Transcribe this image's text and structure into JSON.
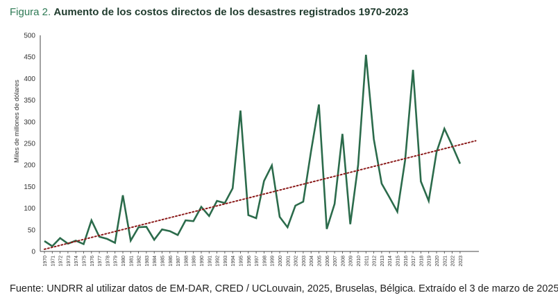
{
  "figure": {
    "label": "Figura 2.",
    "title": "Aumento de los costos directos de los desastres registrados 1970-2023",
    "source": "Fuente: UNDRR al utilizar datos de EM-DAR, CRED / UCLouvain, 2025, Bruselas, Bélgica. Extraído el 3 de marzo de 2025."
  },
  "colors": {
    "line": "#2b6b4b",
    "trend": "#8b1a1a",
    "label": "#2e7a55",
    "title": "#1f3b2d"
  },
  "chart_data": {
    "type": "line",
    "ylabel": "Miles de millones de dólares",
    "xlabel": "",
    "ylim": [
      0,
      500
    ],
    "yticks": [
      0,
      50,
      100,
      150,
      200,
      250,
      300,
      350,
      400,
      450,
      500
    ],
    "grid": false,
    "legend": "none",
    "x": [
      "1970",
      "1971",
      "1972",
      "1973",
      "1974",
      "1975",
      "1976",
      "1977",
      "1978",
      "1979",
      "1980",
      "1981",
      "1982",
      "1983",
      "1984",
      "1985",
      "1986",
      "1987",
      "1988",
      "1989",
      "1990",
      "1991",
      "1992",
      "1993",
      "1994",
      "1995",
      "1996",
      "1997",
      "1998",
      "1999",
      "2000",
      "2001",
      "2002",
      "2003",
      "2004",
      "2005",
      "2006",
      "2007",
      "2008",
      "2009",
      "2010",
      "2011",
      "2012",
      "2013",
      "2014",
      "2015",
      "2016",
      "2017",
      "2018",
      "2019",
      "2020",
      "2021",
      "2022",
      "2023"
    ],
    "x_tick_labels": [
      "1970",
      "1971",
      "1972",
      "1973",
      "1974",
      "1975",
      "1976",
      "1977",
      "1978",
      "1979",
      "1980",
      "1981",
      "1982",
      "1983",
      "1984",
      "1985",
      "1986",
      "1987",
      "1988",
      "1989",
      "1990",
      "1991",
      "1992",
      "1993",
      "1994",
      "1995",
      "1996",
      "1997",
      "1998",
      "1999",
      "2000",
      "2001",
      "2002",
      "2003",
      "2004",
      "2005",
      "2006",
      "2007",
      "2008",
      "2009",
      "2010",
      "2011",
      "2012",
      "2013",
      "2014",
      "2015",
      "2016",
      "2017",
      "2018",
      "2019",
      "2020",
      "2021",
      "2022",
      "2023"
    ],
    "series": [
      {
        "style": "solid",
        "values": [
          24,
          12,
          31,
          18,
          25,
          17,
          72,
          34,
          29,
          20,
          130,
          25,
          56,
          57,
          27,
          51,
          47,
          38,
          72,
          70,
          103,
          82,
          117,
          112,
          146,
          326,
          84,
          77,
          163,
          199,
          80,
          56,
          106,
          115,
          232,
          340,
          52,
          110,
          272,
          63,
          200,
          455,
          260,
          157,
          125,
          92,
          212,
          420,
          162,
          117,
          230,
          284,
          245,
          203
        ]
      },
      {
        "style": "dotted-trend",
        "from": [
          1970,
          5
        ],
        "to": [
          2025,
          256
        ]
      }
    ]
  }
}
